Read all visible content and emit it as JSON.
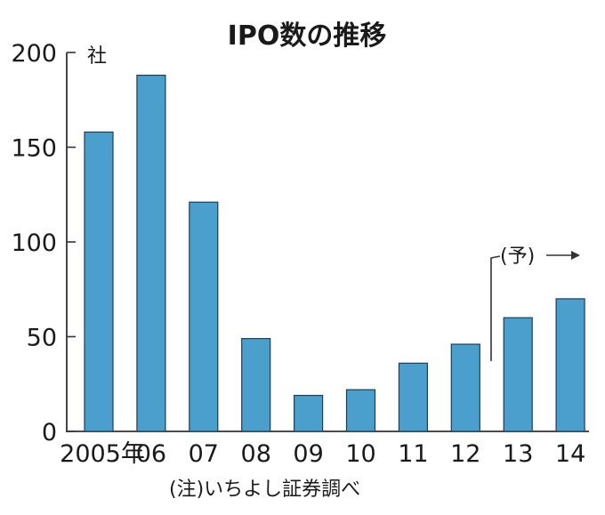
{
  "chart_data": {
    "type": "bar",
    "title": "IPO数の推移",
    "ylabel": "社",
    "categories": [
      "2005年",
      "06",
      "07",
      "08",
      "09",
      "10",
      "11",
      "12",
      "13",
      "14"
    ],
    "values": [
      158,
      188,
      121,
      49,
      19,
      22,
      36,
      46,
      60,
      70
    ],
    "ylim": [
      0,
      200
    ],
    "yticks": [
      0,
      50,
      100,
      150,
      200
    ],
    "grid": false,
    "bar_color": "#4a9fcc",
    "forecast_label": "(予)",
    "forecast_from": "13",
    "note": "(注)いちよし証券調べ"
  }
}
